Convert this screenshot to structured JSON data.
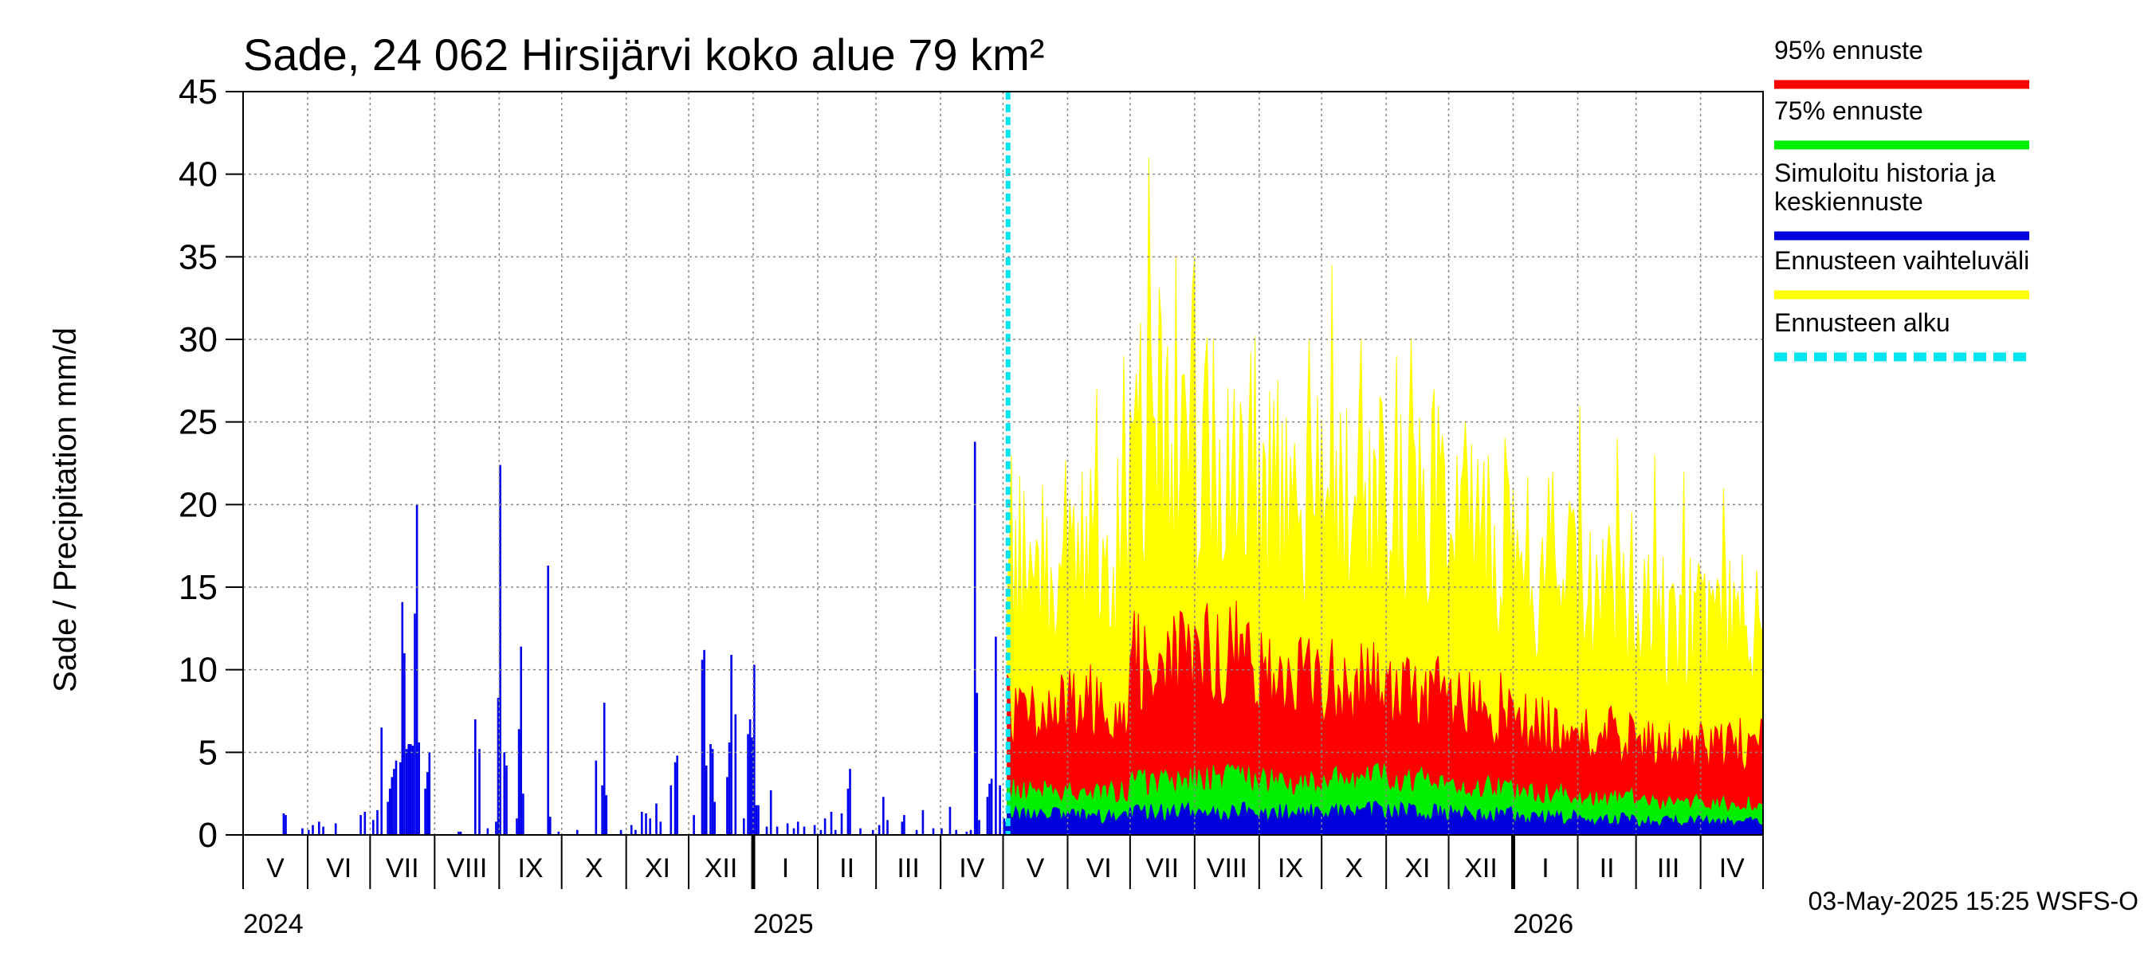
{
  "chart_data": {
    "type": "bar",
    "title": "Sade, 24 062 Hirsijärvi koko alue 79 km²",
    "ylabel": "Sade / Precipitation   mm/d",
    "ylim": [
      0,
      45
    ],
    "yticks": [
      0,
      5,
      10,
      15,
      20,
      25,
      30,
      35,
      40,
      45
    ],
    "grid": true,
    "legend_position": "right",
    "x_start": "2024-05-01",
    "x_end": "2026-05-01",
    "forecast_start": "2025-05-03",
    "months": [
      {
        "label": "V",
        "start": "2024-05-01"
      },
      {
        "label": "VI",
        "start": "2024-06-01"
      },
      {
        "label": "VII",
        "start": "2024-07-01"
      },
      {
        "label": "VIII",
        "start": "2024-08-01"
      },
      {
        "label": "IX",
        "start": "2024-09-01"
      },
      {
        "label": "X",
        "start": "2024-10-01"
      },
      {
        "label": "XI",
        "start": "2024-11-01"
      },
      {
        "label": "XII",
        "start": "2024-12-01"
      },
      {
        "label": "I",
        "start": "2025-01-01"
      },
      {
        "label": "II",
        "start": "2025-02-01"
      },
      {
        "label": "III",
        "start": "2025-03-01"
      },
      {
        "label": "IV",
        "start": "2025-04-01"
      },
      {
        "label": "V",
        "start": "2025-05-01"
      },
      {
        "label": "VI",
        "start": "2025-06-01"
      },
      {
        "label": "VII",
        "start": "2025-07-01"
      },
      {
        "label": "VIII",
        "start": "2025-08-01"
      },
      {
        "label": "IX",
        "start": "2025-09-01"
      },
      {
        "label": "X",
        "start": "2025-10-01"
      },
      {
        "label": "XI",
        "start": "2025-11-01"
      },
      {
        "label": "XII",
        "start": "2025-12-01"
      },
      {
        "label": "I",
        "start": "2026-01-01"
      },
      {
        "label": "II",
        "start": "2026-02-01"
      },
      {
        "label": "III",
        "start": "2026-03-01"
      },
      {
        "label": "IV",
        "start": "2026-04-01"
      }
    ],
    "years": [
      {
        "label": "2024",
        "date": "2024-05-01"
      },
      {
        "label": "2025",
        "date": "2025-01-01"
      },
      {
        "label": "2026",
        "date": "2026-01-01"
      }
    ],
    "history": [
      [
        "2024-05-20",
        1.3
      ],
      [
        "2024-05-21",
        1.2
      ],
      [
        "2024-05-29",
        0.4
      ],
      [
        "2024-06-01",
        0.3
      ],
      [
        "2024-06-03",
        0.6
      ],
      [
        "2024-06-06",
        0.8
      ],
      [
        "2024-06-08",
        0.5
      ],
      [
        "2024-06-14",
        0.7
      ],
      [
        "2024-06-26",
        1.2
      ],
      [
        "2024-06-28",
        1.4
      ],
      [
        "2024-07-02",
        0.9
      ],
      [
        "2024-07-04",
        1.5
      ],
      [
        "2024-07-06",
        6.5
      ],
      [
        "2024-07-09",
        2.0
      ],
      [
        "2024-07-10",
        2.8
      ],
      [
        "2024-07-11",
        3.5
      ],
      [
        "2024-07-12",
        4.0
      ],
      [
        "2024-07-13",
        4.5
      ],
      [
        "2024-07-15",
        4.4
      ],
      [
        "2024-07-16",
        14.1
      ],
      [
        "2024-07-17",
        11.0
      ],
      [
        "2024-07-18",
        5.2
      ],
      [
        "2024-07-19",
        5.5
      ],
      [
        "2024-07-20",
        5.5
      ],
      [
        "2024-07-21",
        5.4
      ],
      [
        "2024-07-22",
        13.4
      ],
      [
        "2024-07-23",
        20.0
      ],
      [
        "2024-07-24",
        5.6
      ],
      [
        "2024-07-27",
        2.8
      ],
      [
        "2024-07-28",
        3.8
      ],
      [
        "2024-07-29",
        5.0
      ],
      [
        "2024-08-12",
        0.2
      ],
      [
        "2024-08-13",
        0.2
      ],
      [
        "2024-08-20",
        7.0
      ],
      [
        "2024-08-22",
        5.2
      ],
      [
        "2024-08-26",
        0.4
      ],
      [
        "2024-08-30",
        0.8
      ],
      [
        "2024-08-31",
        8.3
      ],
      [
        "2024-09-01",
        22.4
      ],
      [
        "2024-09-03",
        5.0
      ],
      [
        "2024-09-04",
        4.2
      ],
      [
        "2024-09-09",
        1.0
      ],
      [
        "2024-09-10",
        6.4
      ],
      [
        "2024-09-11",
        11.4
      ],
      [
        "2024-09-12",
        2.5
      ],
      [
        "2024-09-24",
        16.3
      ],
      [
        "2024-09-25",
        1.1
      ],
      [
        "2024-09-29",
        0.2
      ],
      [
        "2024-10-08",
        0.3
      ],
      [
        "2024-10-17",
        4.5
      ],
      [
        "2024-10-20",
        3.0
      ],
      [
        "2024-10-21",
        8.0
      ],
      [
        "2024-10-22",
        2.4
      ],
      [
        "2024-10-29",
        0.3
      ],
      [
        "2024-11-03",
        0.6
      ],
      [
        "2024-11-05",
        0.3
      ],
      [
        "2024-11-08",
        1.4
      ],
      [
        "2024-11-10",
        1.3
      ],
      [
        "2024-11-12",
        1.0
      ],
      [
        "2024-11-15",
        1.9
      ],
      [
        "2024-11-17",
        0.8
      ],
      [
        "2024-11-22",
        3.0
      ],
      [
        "2024-11-24",
        4.4
      ],
      [
        "2024-11-25",
        4.8
      ],
      [
        "2024-12-03",
        1.2
      ],
      [
        "2024-12-07",
        10.6
      ],
      [
        "2024-12-08",
        11.2
      ],
      [
        "2024-12-09",
        4.2
      ],
      [
        "2024-12-11",
        5.5
      ],
      [
        "2024-12-12",
        5.2
      ],
      [
        "2024-12-13",
        2.0
      ],
      [
        "2024-12-19",
        3.5
      ],
      [
        "2024-12-20",
        5.6
      ],
      [
        "2024-12-21",
        10.9
      ],
      [
        "2024-12-23",
        7.3
      ],
      [
        "2024-12-27",
        1.0
      ],
      [
        "2024-12-29",
        6.1
      ],
      [
        "2024-12-30",
        7.0
      ],
      [
        "2024-12-31",
        5.9
      ],
      [
        "2025-01-01",
        10.3
      ],
      [
        "2025-01-02",
        1.8
      ],
      [
        "2025-01-03",
        1.8
      ],
      [
        "2025-01-07",
        0.5
      ],
      [
        "2025-01-09",
        2.7
      ],
      [
        "2025-01-12",
        0.5
      ],
      [
        "2025-01-17",
        0.7
      ],
      [
        "2025-01-20",
        0.4
      ],
      [
        "2025-01-22",
        0.8
      ],
      [
        "2025-01-25",
        0.5
      ],
      [
        "2025-01-30",
        0.6
      ],
      [
        "2025-02-02",
        0.3
      ],
      [
        "2025-02-04",
        1.0
      ],
      [
        "2025-02-07",
        1.4
      ],
      [
        "2025-02-09",
        0.3
      ],
      [
        "2025-02-12",
        1.3
      ],
      [
        "2025-02-15",
        2.8
      ],
      [
        "2025-02-16",
        4.0
      ],
      [
        "2025-02-21",
        0.4
      ],
      [
        "2025-02-27",
        0.3
      ],
      [
        "2025-03-02",
        0.6
      ],
      [
        "2025-03-04",
        2.3
      ],
      [
        "2025-03-06",
        0.9
      ],
      [
        "2025-03-13",
        0.8
      ],
      [
        "2025-03-14",
        1.2
      ],
      [
        "2025-03-20",
        0.3
      ],
      [
        "2025-03-23",
        1.5
      ],
      [
        "2025-03-28",
        0.4
      ],
      [
        "2025-04-01",
        0.4
      ],
      [
        "2025-04-05",
        1.7
      ],
      [
        "2025-04-08",
        0.3
      ],
      [
        "2025-04-13",
        0.2
      ],
      [
        "2025-04-15",
        0.3
      ],
      [
        "2025-04-17",
        23.8
      ],
      [
        "2025-04-18",
        8.6
      ],
      [
        "2025-04-19",
        0.9
      ],
      [
        "2025-04-23",
        2.3
      ],
      [
        "2025-04-24",
        3.1
      ],
      [
        "2025-04-25",
        3.4
      ],
      [
        "2025-04-27",
        12.0
      ],
      [
        "2025-04-29",
        3.0
      ],
      [
        "2025-05-01",
        1.0
      ],
      [
        "2025-05-02",
        0.8
      ]
    ],
    "forecast_monthly": [
      {
        "month": "V",
        "median": 1.2,
        "p75": 2.6,
        "p95": 7.5,
        "max": 20.0
      },
      {
        "month": "VI",
        "median": 1.1,
        "p75": 2.5,
        "p95": 8.0,
        "max": 20.0
      },
      {
        "month": "VII",
        "median": 1.3,
        "p75": 3.1,
        "p95": 10.5,
        "max": 29.0
      },
      {
        "month": "VIII",
        "median": 1.4,
        "p75": 3.3,
        "p95": 11.0,
        "max": 27.0
      },
      {
        "month": "IX",
        "median": 1.3,
        "p75": 3.2,
        "p95": 9.5,
        "max": 24.0
      },
      {
        "month": "X",
        "median": 1.4,
        "p75": 3.4,
        "p95": 9.3,
        "max": 25.0
      },
      {
        "month": "XI",
        "median": 1.4,
        "p75": 3.3,
        "p95": 8.5,
        "max": 23.0
      },
      {
        "month": "XII",
        "median": 1.2,
        "p75": 2.8,
        "p95": 7.6,
        "max": 21.0
      },
      {
        "month": "I",
        "median": 1.0,
        "p75": 2.4,
        "p95": 6.6,
        "max": 19.0
      },
      {
        "month": "II",
        "median": 0.9,
        "p75": 2.2,
        "p95": 6.0,
        "max": 17.0
      },
      {
        "month": "III",
        "median": 0.8,
        "p75": 1.9,
        "p95": 5.3,
        "max": 15.0
      },
      {
        "month": "IV",
        "median": 0.8,
        "p75": 1.8,
        "p95": 5.5,
        "max": 15.0
      }
    ],
    "forecast_peaks": [
      [
        "2025-07-10",
        41.0
      ],
      [
        "2025-07-23",
        35.0
      ],
      [
        "2025-08-01",
        35.0
      ],
      [
        "2025-06-15",
        27.0
      ],
      [
        "2025-06-28",
        29.0
      ],
      [
        "2025-07-16",
        31.0
      ],
      [
        "2025-08-10",
        30.0
      ],
      [
        "2025-08-20",
        27.0
      ],
      [
        "2025-09-12",
        25.0
      ],
      [
        "2025-09-25",
        30.0
      ],
      [
        "2025-10-06",
        34.5
      ],
      [
        "2025-10-20",
        30.0
      ],
      [
        "2025-11-06",
        29.0
      ],
      [
        "2025-11-13",
        30.0
      ],
      [
        "2025-11-24",
        27.0
      ],
      [
        "2025-12-09",
        25.0
      ],
      [
        "2025-12-20",
        23.0
      ],
      [
        "2026-01-20",
        22.0
      ],
      [
        "2026-02-02",
        26.0
      ],
      [
        "2026-02-20",
        24.0
      ],
      [
        "2026-03-10",
        23.0
      ],
      [
        "2026-03-24",
        22.0
      ],
      [
        "2026-04-12",
        21.0
      ],
      [
        "2026-04-28",
        16.0
      ]
    ]
  },
  "legend": [
    {
      "label": "95% ennuste",
      "color": "#ff0000",
      "style": "solid"
    },
    {
      "label": "75% ennuste",
      "color": "#00ee00",
      "style": "solid"
    },
    {
      "label": "Simuloitu historia ja",
      "label2": "keskiennuste",
      "color": "#0000dd",
      "style": "solid"
    },
    {
      "label": "Ennusteen vaihteluväli",
      "color": "#ffff00",
      "style": "solid"
    },
    {
      "label": "Ennusteen alku",
      "color": "#00e5ee",
      "style": "dashed"
    }
  ],
  "colors": {
    "history": "#0000ee",
    "median": "#0000dd",
    "p75": "#00ee00",
    "p95": "#ff0000",
    "range": "#ffff00",
    "forecast_start": "#00e5ee"
  },
  "timestamp": "03-May-2025 15:25 WSFS-O"
}
